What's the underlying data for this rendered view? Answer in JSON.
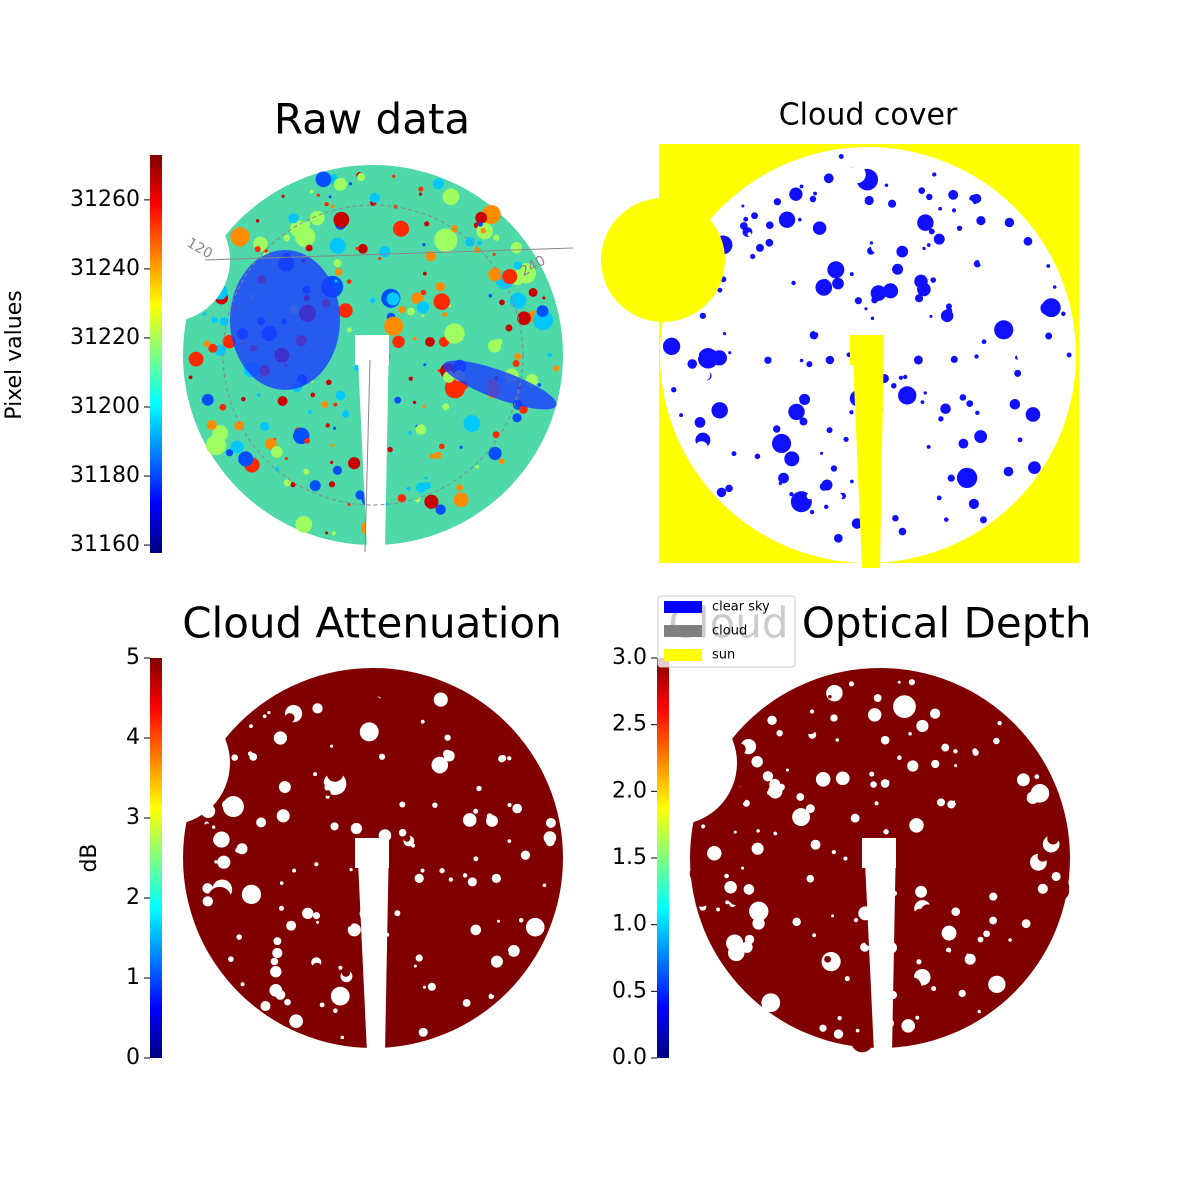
{
  "chart_data": [
    {
      "type": "image",
      "title": "Raw data",
      "colorbar_label": "Pixel values",
      "cmap": "jet",
      "clim": [
        31157.7,
        31273
      ],
      "cticks": [
        31160,
        31180,
        31200,
        31220,
        31240,
        31260
      ],
      "annotations": [
        "120",
        "240"
      ]
    },
    {
      "type": "image",
      "title": "Cloud cover",
      "legend": [
        {
          "name": "clear sky",
          "color": "#0000ff"
        },
        {
          "name": "cloud",
          "color": "#808080"
        },
        {
          "name": "sun",
          "color": "#ffff00"
        }
      ]
    },
    {
      "type": "image",
      "title": "Cloud Attenuation",
      "colorbar_label": "dB",
      "cmap": "jet",
      "clim": [
        0,
        5
      ],
      "cticks": [
        0,
        1,
        2,
        3,
        4,
        5
      ]
    },
    {
      "type": "image",
      "title": "Cloud Optical Depth",
      "cmap": "jet",
      "clim": [
        0,
        3
      ],
      "cticks": [
        {
          "value": 0,
          "label": "0.0"
        },
        0.5,
        {
          "value": 1,
          "label": "1.0"
        },
        1.5,
        {
          "value": 2,
          "label": "2.0"
        },
        2.5,
        {
          "value": 3,
          "label": "3.0"
        }
      ]
    }
  ]
}
